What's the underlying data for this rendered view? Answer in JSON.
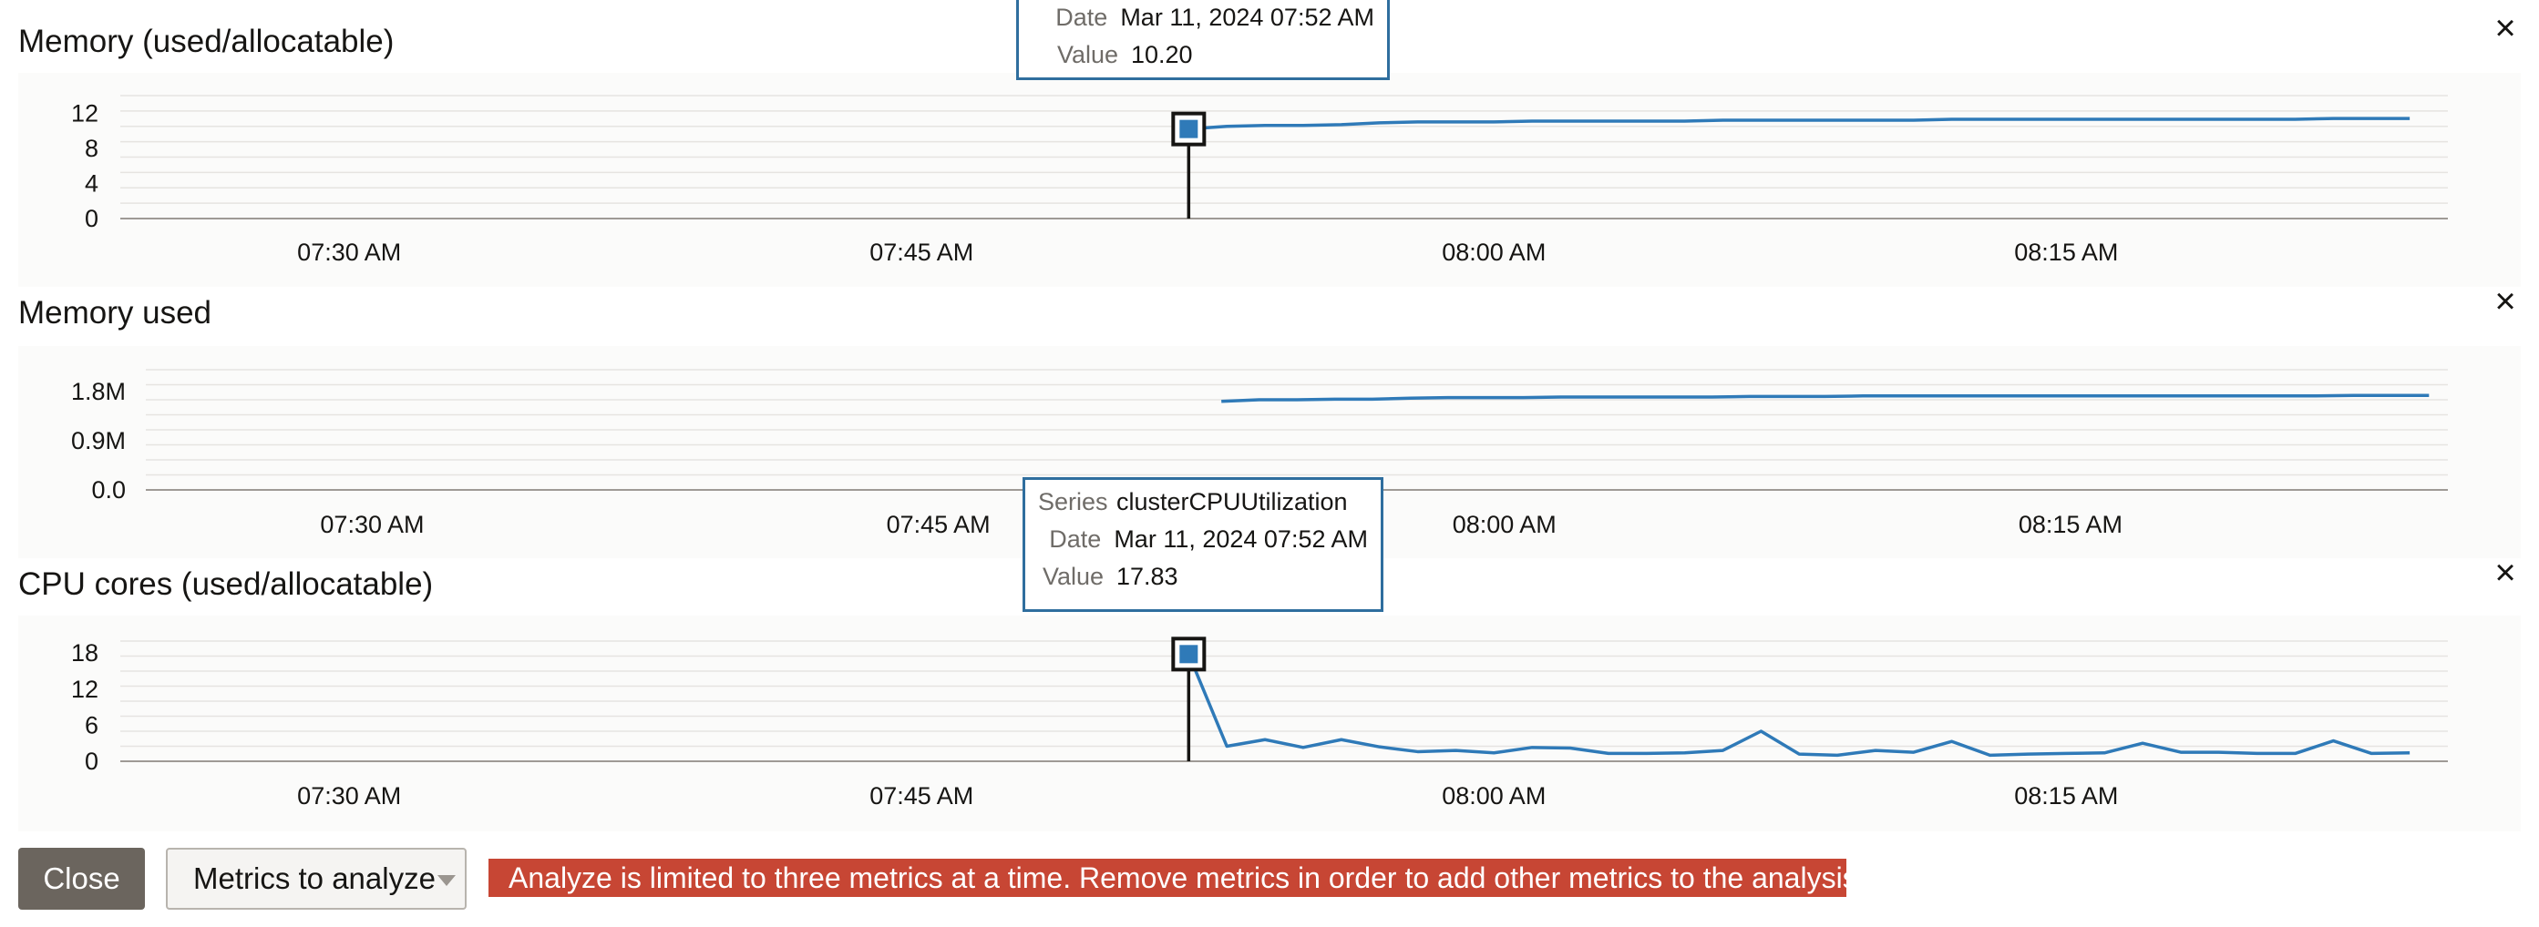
{
  "panels": [
    {
      "title": "Memory (used/allocatable)",
      "close_icon": "×",
      "chart_data": {
        "type": "line",
        "title": "Memory (used/allocatable)",
        "y_ticks": [
          "0",
          "4",
          "8",
          "12"
        ],
        "ylim": [
          0,
          14
        ],
        "x_ticks": [
          "07:30 AM",
          "07:45 AM",
          "08:00 AM",
          "08:15 AM"
        ],
        "x_tick_minutes": [
          450,
          465,
          480,
          495
        ],
        "xlim_minutes": [
          444,
          505
        ],
        "grid": true,
        "series": [
          {
            "color": "#2f7ab8",
            "x_minutes": [
              472,
              473,
              474,
              475,
              476,
              477,
              478,
              479,
              480,
              481,
              482,
              483,
              484,
              485,
              486,
              487,
              488,
              489,
              490,
              491,
              492,
              493,
              494,
              495,
              496,
              497,
              498,
              499,
              500,
              501,
              502,
              503,
              504
            ],
            "values": [
              10.2,
              10.5,
              10.6,
              10.6,
              10.7,
              10.9,
              11.0,
              11.0,
              11.0,
              11.1,
              11.1,
              11.1,
              11.1,
              11.1,
              11.2,
              11.2,
              11.2,
              11.2,
              11.2,
              11.2,
              11.3,
              11.3,
              11.3,
              11.3,
              11.3,
              11.3,
              11.3,
              11.3,
              11.3,
              11.3,
              11.4,
              11.4,
              11.4
            ]
          }
        ]
      },
      "tooltip": {
        "rows": [
          {
            "key": "Date",
            "value": "Mar 11, 2024 07:52 AM"
          },
          {
            "key": "Value",
            "value": "10.20"
          }
        ]
      }
    },
    {
      "title": "Memory used",
      "close_icon": "×",
      "chart_data": {
        "type": "line",
        "title": "Memory used",
        "y_ticks": [
          "0.0",
          "0.9M",
          "1.8M"
        ],
        "ylim": [
          0,
          2.2
        ],
        "y_unit": "M",
        "x_ticks": [
          "07:30 AM",
          "07:45 AM",
          "08:00 AM",
          "08:15 AM"
        ],
        "x_tick_minutes": [
          450,
          465,
          480,
          495
        ],
        "xlim_minutes": [
          444,
          505
        ],
        "grid": true,
        "series": [
          {
            "color": "#2f7ab8",
            "x_minutes": [
              472.5,
              473.5,
              474.5,
              475.5,
              476.5,
              477.5,
              478.5,
              479.5,
              480.5,
              481.5,
              482.5,
              483.5,
              484.5,
              485.5,
              486.5,
              487.5,
              488.5,
              489.5,
              490.5,
              491.5,
              492.5,
              493.5,
              494.5,
              495.5,
              496.5,
              497.5,
              498.5,
              499.5,
              500.5,
              501.5,
              502.5,
              503.5,
              504.5
            ],
            "values": [
              1.62,
              1.65,
              1.65,
              1.66,
              1.66,
              1.68,
              1.69,
              1.69,
              1.69,
              1.7,
              1.7,
              1.7,
              1.7,
              1.7,
              1.71,
              1.71,
              1.71,
              1.72,
              1.72,
              1.72,
              1.72,
              1.72,
              1.72,
              1.72,
              1.72,
              1.72,
              1.72,
              1.72,
              1.72,
              1.72,
              1.73,
              1.73,
              1.73
            ]
          }
        ]
      }
    },
    {
      "title": "CPU cores (used/allocatable)",
      "close_icon": "×",
      "chart_data": {
        "type": "line",
        "title": "CPU cores (used/allocatable)",
        "y_ticks": [
          "0",
          "6",
          "12",
          "18"
        ],
        "ylim": [
          0,
          20
        ],
        "x_ticks": [
          "07:30 AM",
          "07:45 AM",
          "08:00 AM",
          "08:15 AM"
        ],
        "x_tick_minutes": [
          450,
          465,
          480,
          495
        ],
        "xlim_minutes": [
          444,
          505
        ],
        "grid": true,
        "series": [
          {
            "name": "clusterCPUUtilization",
            "color": "#2f7ab8",
            "x_minutes": [
              472,
              473,
              474,
              475,
              476,
              477,
              478,
              479,
              480,
              481,
              482,
              483,
              484,
              485,
              486,
              487,
              488,
              489,
              490,
              491,
              492,
              493,
              494,
              495,
              496,
              497,
              498,
              499,
              500,
              501,
              502,
              503,
              504
            ],
            "values": [
              17.83,
              2.5,
              3.6,
              2.3,
              3.6,
              2.4,
              1.6,
              1.8,
              1.4,
              2.3,
              2.2,
              1.3,
              1.3,
              1.4,
              1.8,
              5.0,
              1.2,
              1.0,
              1.8,
              1.5,
              3.3,
              1.0,
              1.2,
              1.3,
              1.4,
              3.0,
              1.5,
              1.5,
              1.3,
              1.3,
              3.4,
              1.3,
              1.4
            ]
          }
        ]
      },
      "tooltip": {
        "rows": [
          {
            "key": "Series",
            "value": "clusterCPUUtilization"
          },
          {
            "key": "Date",
            "value": "Mar 11, 2024 07:52 AM"
          },
          {
            "key": "Value",
            "value": "17.83"
          }
        ]
      }
    }
  ],
  "footer": {
    "close_label": "Close",
    "metrics_label": "Metrics to analyze",
    "warning": "Analyze is limited to three metrics at a time. Remove metrics in order to add other metrics to the analysis."
  },
  "colors": {
    "series": "#2f7ab8",
    "tooltip_border": "#2f6e9e",
    "warning_bg": "#c74634",
    "close_button_bg": "#6b655e"
  }
}
